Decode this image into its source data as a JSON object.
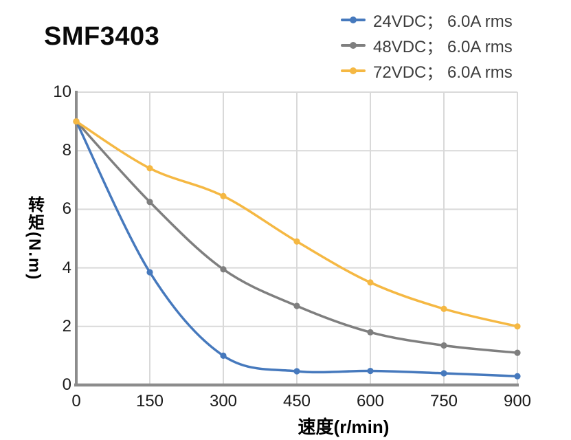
{
  "chart_data": {
    "type": "line",
    "title": "SMF3403",
    "x": [
      0,
      150,
      300,
      450,
      600,
      750,
      900
    ],
    "series": [
      {
        "name": "24VDC； 6.0A rms",
        "color": "#4679BD",
        "values": [
          9.0,
          3.85,
          1.0,
          0.47,
          0.48,
          0.4,
          0.3
        ]
      },
      {
        "name": "48VDC； 6.0A rms",
        "color": "#7F7F7F",
        "values": [
          9.0,
          6.25,
          3.95,
          2.7,
          1.8,
          1.35,
          1.1
        ]
      },
      {
        "name": "72VDC； 6.0A rms",
        "color": "#F5B843",
        "values": [
          9.0,
          7.4,
          6.45,
          4.9,
          3.5,
          2.6,
          2.0
        ]
      }
    ],
    "xlabel": "速度(r/min)",
    "ylabel": "转矩(N.m)",
    "xlim": [
      0,
      900
    ],
    "ylim": [
      0,
      10
    ],
    "x_ticks": [
      0,
      150,
      300,
      450,
      600,
      750,
      900
    ],
    "y_ticks": [
      0,
      2,
      4,
      6,
      8,
      10
    ],
    "grid": true,
    "legend_position": "top-right",
    "marker": "circle",
    "colors": {
      "grid": "#D9D9D9",
      "axis": "#8C8C8C",
      "tick_text": "#1A1A1A",
      "legend_text": "#3D3D3D",
      "background": "#FFFFFF"
    }
  }
}
